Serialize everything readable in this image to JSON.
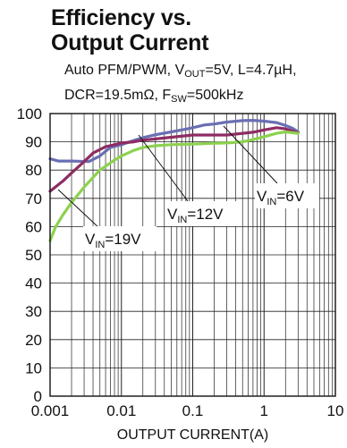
{
  "header": {
    "title_line1": "Efficiency vs.",
    "title_line2": "Output Current",
    "conditions_line1_prefix": "Auto PFM/PWM, V",
    "conditions_line1_vout_sub": "OUT",
    "conditions_line1_suffix": "=5V, L=4.7µH,",
    "conditions_line2_prefix": "DCR=19.5mΩ, F",
    "conditions_line2_fsw_sub": "SW",
    "conditions_line2_suffix": "=500kHz"
  },
  "chart_data": {
    "type": "line",
    "xlabel": "OUTPUT CURRENT(A)",
    "ylabel": "",
    "xscale": "log",
    "xlim": [
      0.001,
      10
    ],
    "ylim": [
      0,
      100
    ],
    "grid": true,
    "x_tick_labels": [
      "0.001",
      "0.01",
      "0.1",
      "1",
      "10"
    ],
    "y_tick_labels": [
      "0",
      "10",
      "20",
      "30",
      "40",
      "50",
      "60",
      "70",
      "80",
      "90",
      "100"
    ],
    "series": [
      {
        "label_main": "V",
        "label_sub": "IN",
        "label_suffix": "=6V",
        "color": "#6a6fb3",
        "x": [
          0.001,
          0.0013,
          0.002,
          0.0035,
          0.005,
          0.007,
          0.01,
          0.015,
          0.02,
          0.03,
          0.05,
          0.08,
          0.1,
          0.15,
          0.2,
          0.3,
          0.5,
          0.7,
          1.0,
          1.5,
          2.0,
          2.5,
          3.0
        ],
        "y": [
          84,
          83.2,
          83.2,
          83,
          85,
          88,
          89,
          90.5,
          91.5,
          92.5,
          93.5,
          94.5,
          95,
          96,
          96.3,
          97,
          97.5,
          97.6,
          97.3,
          96.8,
          95.8,
          94.8,
          93.5
        ]
      },
      {
        "label_main": "V",
        "label_sub": "IN",
        "label_suffix": "=12V",
        "color": "#8e2c63",
        "x": [
          0.001,
          0.0015,
          0.002,
          0.003,
          0.004,
          0.006,
          0.008,
          0.01,
          0.015,
          0.02,
          0.03,
          0.05,
          0.1,
          0.2,
          0.3,
          0.5,
          0.7,
          1.0,
          1.5,
          2.0,
          3.0
        ],
        "y": [
          72.5,
          76,
          79,
          83,
          86,
          88.3,
          89,
          89.6,
          90,
          90.6,
          91,
          91.6,
          92.4,
          92.4,
          92.4,
          93,
          93.4,
          94.2,
          95,
          94.6,
          93.2
        ]
      },
      {
        "label_main": "V",
        "label_sub": "IN",
        "label_suffix": "=19V",
        "color": "#8dd14e",
        "x": [
          0.001,
          0.0012,
          0.0015,
          0.002,
          0.003,
          0.005,
          0.008,
          0.01,
          0.015,
          0.02,
          0.03,
          0.05,
          0.1,
          0.2,
          0.3,
          0.5,
          0.7,
          1.0,
          1.5,
          2.0,
          3.0
        ],
        "y": [
          55,
          60,
          64,
          68.5,
          74,
          80,
          83.5,
          85,
          87,
          88,
          88.6,
          89,
          89.2,
          89.5,
          89.6,
          90,
          90.8,
          91.8,
          93,
          93.5,
          93
        ]
      }
    ]
  }
}
